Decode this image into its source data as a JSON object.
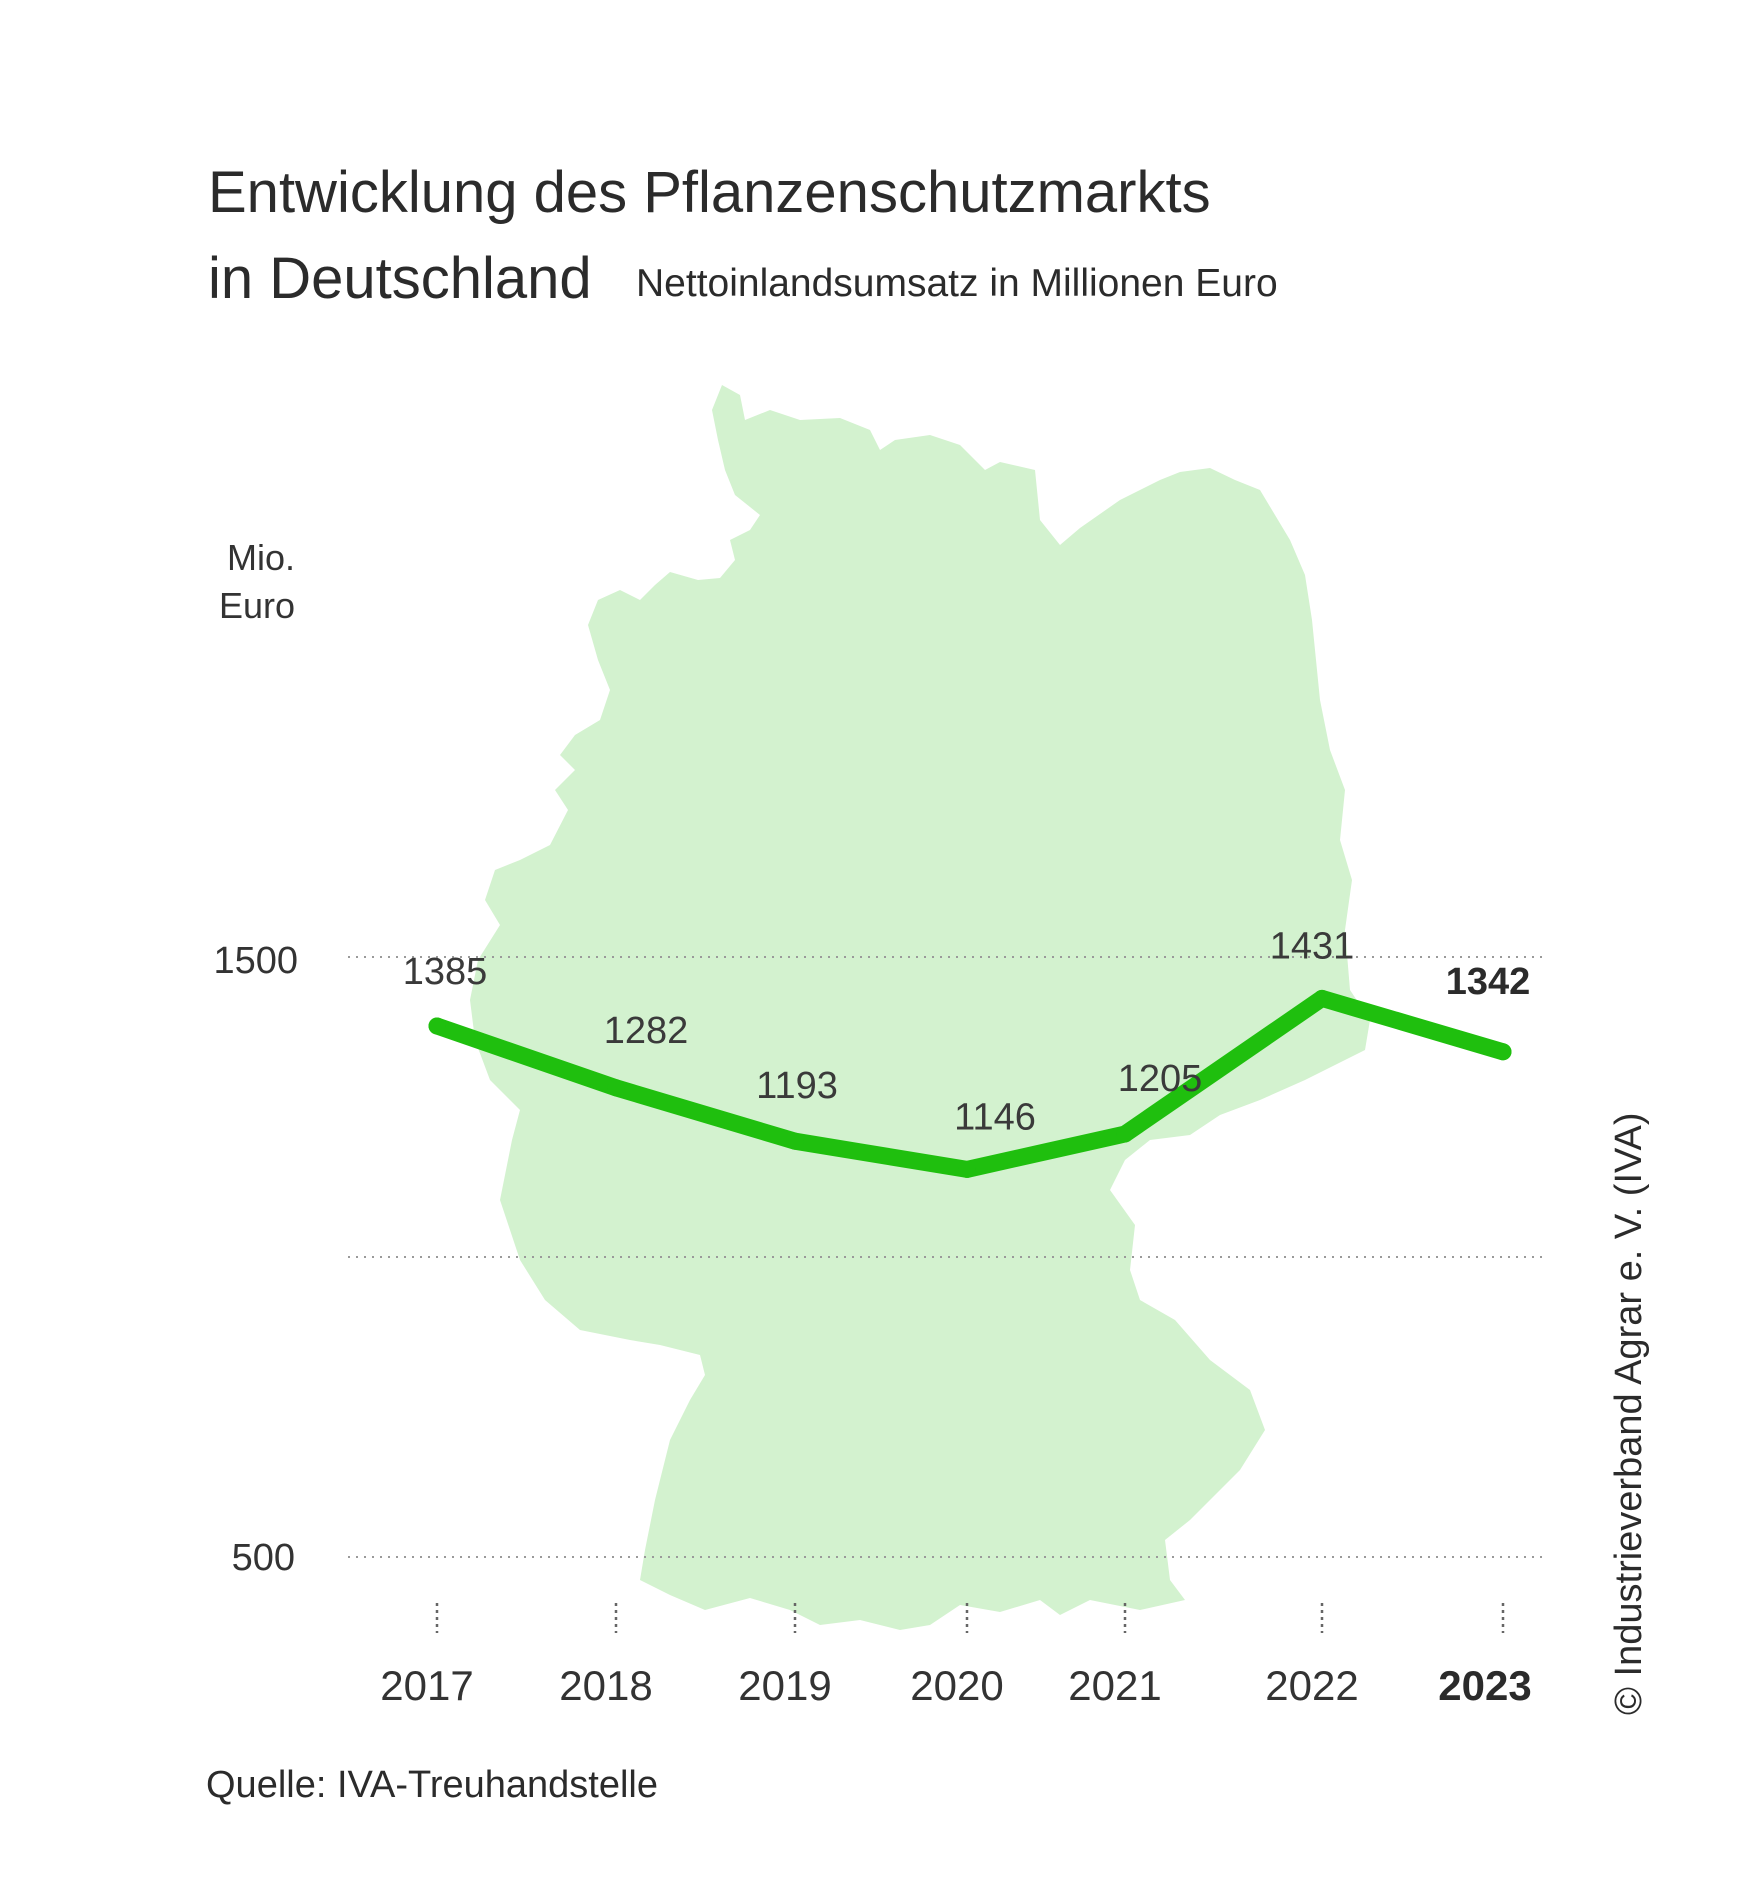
{
  "title_line1": "Entwicklung des Pflanzenschutzmarkts",
  "title_line2": "in Deutschland",
  "subtitle": "Nettoinlandsumsatz in Millionen Euro",
  "unit_line1": "Mio.",
  "unit_line2": "Euro",
  "source": "Quelle: IVA-Treuhandstelle",
  "credit": "© Industrieverband Agrar e. V. (IVA)",
  "colors": {
    "line": "#1fbf0e",
    "map": "#d3f2cf",
    "text": "#2d2d2d"
  },
  "background_shape": "germany-map",
  "chart_data": {
    "type": "line",
    "title": "Entwicklung des Pflanzenschutzmarkts in Deutschland",
    "subtitle": "Nettoinlandsumsatz in Millionen Euro",
    "ylabel": "Mio. Euro",
    "categories": [
      "2017",
      "2018",
      "2019",
      "2020",
      "2021",
      "2022",
      "2023"
    ],
    "values": [
      1385,
      1282,
      1193,
      1146,
      1205,
      1431,
      1342
    ],
    "value_labels": [
      "1385",
      "1282",
      "1193",
      "1146",
      "1205",
      "1431",
      "1342"
    ],
    "yticks": [
      500,
      1500
    ],
    "ytick_labels": [
      "500",
      "1500"
    ],
    "gridlines": [
      500,
      1000,
      1500
    ],
    "ylim": [
      500,
      1500
    ],
    "highlight": "2023",
    "grid": true,
    "legend": "none"
  }
}
